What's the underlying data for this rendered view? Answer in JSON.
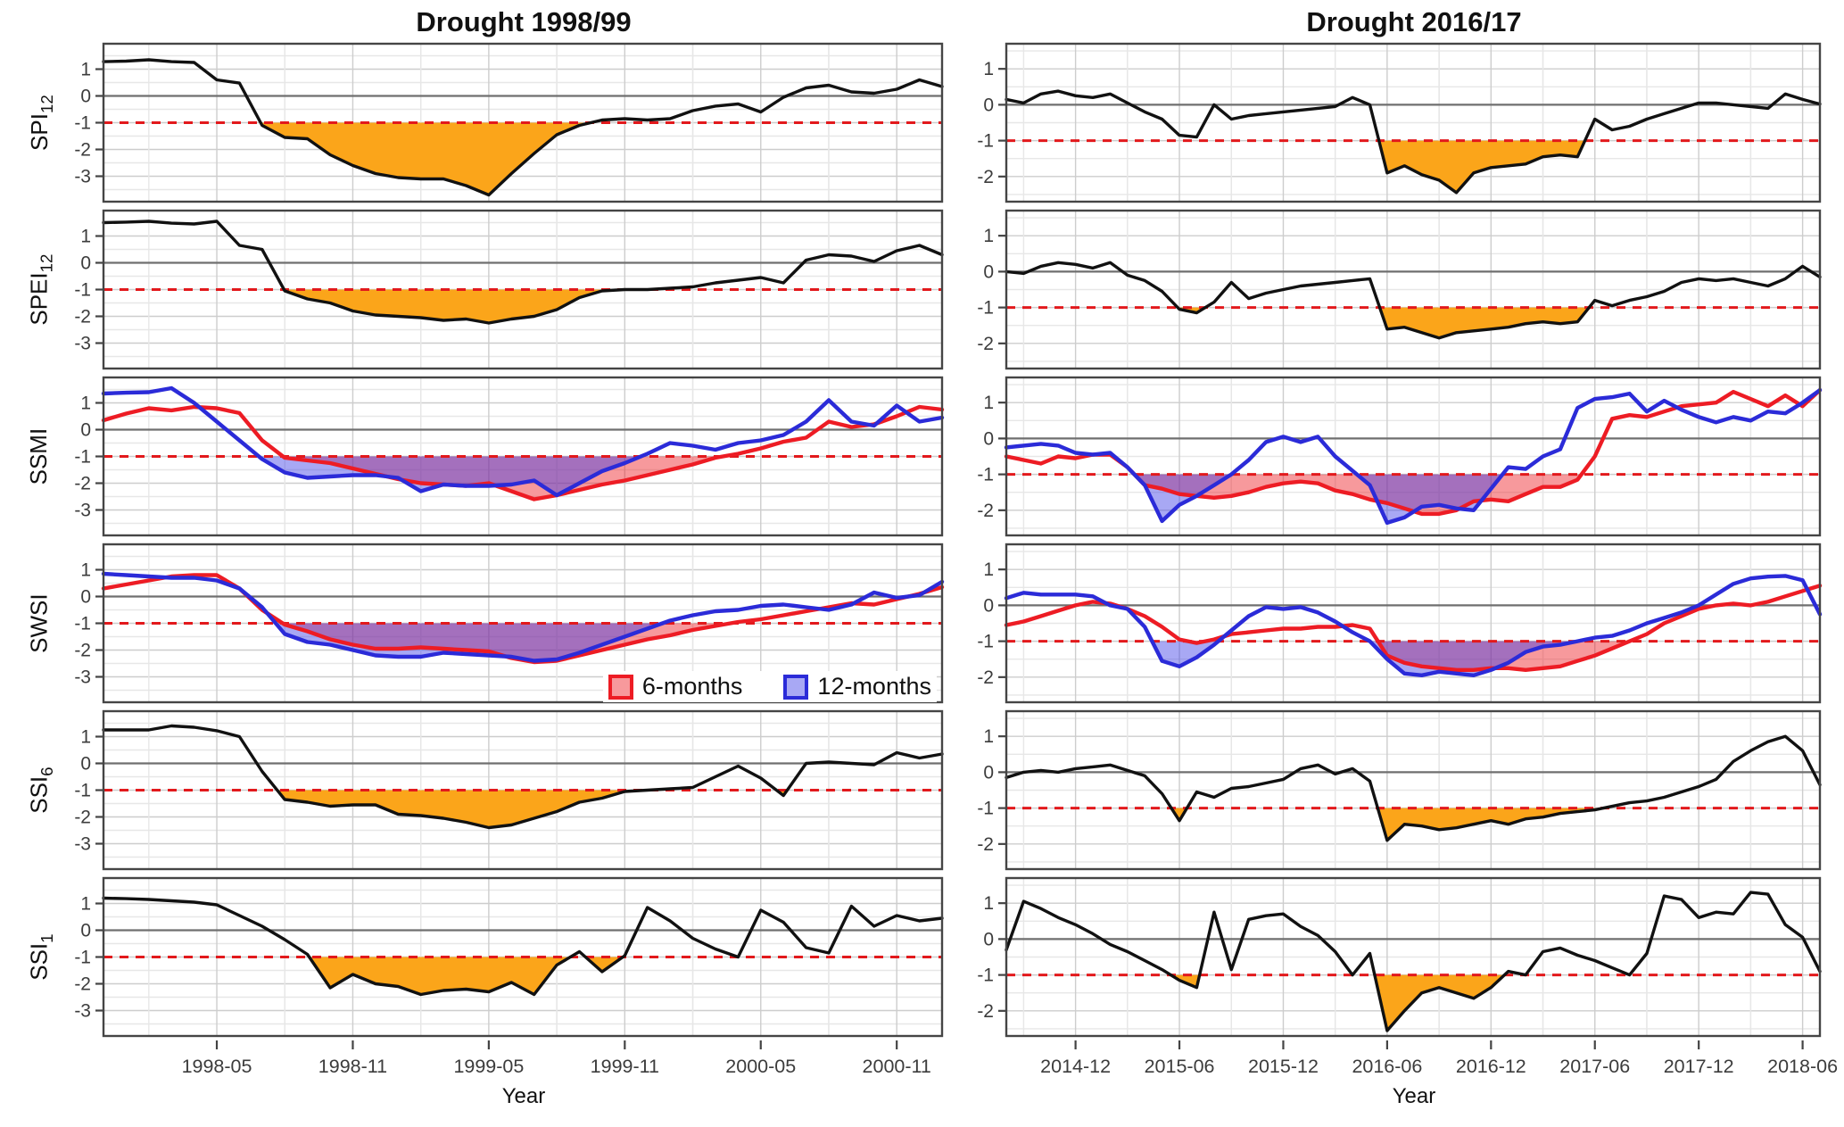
{
  "titles": {
    "left": "Drought 1998/99",
    "right": "Drought 2016/17"
  },
  "rows": [
    {
      "main": "SPI",
      "sub": "12"
    },
    {
      "main": "SPEI",
      "sub": "12"
    },
    {
      "main": "SSMI",
      "sub": ""
    },
    {
      "main": "SWSI",
      "sub": ""
    },
    {
      "main": "SSI",
      "sub": "6"
    },
    {
      "main": "SSI",
      "sub": "1"
    }
  ],
  "axis": {
    "year_label": "Year",
    "left": {
      "n": 38,
      "start_month": "1997-12",
      "ticks": [
        {
          "i": 5,
          "label": "1998-05"
        },
        {
          "i": 11,
          "label": "1998-11"
        },
        {
          "i": 17,
          "label": "1999-05"
        },
        {
          "i": 23,
          "label": "1999-11"
        },
        {
          "i": 29,
          "label": "2000-05"
        },
        {
          "i": 35,
          "label": "2000-11"
        }
      ],
      "yticks": [
        1,
        0,
        -1,
        -2,
        -3
      ],
      "ylim": [
        -3.95,
        1.95
      ]
    },
    "right": {
      "n": 48,
      "start_month": "2014-08",
      "ticks": [
        {
          "i": 4,
          "label": "2014-12"
        },
        {
          "i": 10,
          "label": "2015-06"
        },
        {
          "i": 16,
          "label": "2015-12"
        },
        {
          "i": 22,
          "label": "2016-06"
        },
        {
          "i": 28,
          "label": "2016-12"
        },
        {
          "i": 34,
          "label": "2017-06"
        },
        {
          "i": 40,
          "label": "2017-12"
        },
        {
          "i": 46,
          "label": "2018-06"
        }
      ],
      "yticks": [
        1,
        0,
        -1,
        -2
      ],
      "ylim": [
        -2.7,
        1.7
      ]
    }
  },
  "legend": {
    "items": [
      {
        "label": "6-months",
        "border": "#ED1C24",
        "fill": "rgba(237,28,36,0.45)"
      },
      {
        "label": "12-months",
        "border": "#2B2BD8",
        "fill": "rgba(62,62,230,0.45)"
      }
    ]
  },
  "colors": {
    "black": "#111111",
    "red": "#ED1C24",
    "blue": "#2B2BD8",
    "orange_fill": "#FBA51A",
    "red_fill": "rgba(237,28,36,0.45)",
    "blue_fill": "rgba(62,62,230,0.45)",
    "threshold": "#E2191C",
    "zero_line": "#6F6F6F",
    "grid_minor": "#E7E7E7",
    "grid_major": "#CDCDCD",
    "border": "#454545",
    "tick_label": "#3C3C3C",
    "tick_mark": "#444444"
  },
  "chart_data": [
    {
      "panel": "SPI12 Drought 1998/99",
      "type": "line",
      "side": "left",
      "threshold": -1,
      "series": [
        {
          "name": "SPI12",
          "color": "black",
          "width": 3.4,
          "fill": "orange_fill",
          "values": [
            1.28,
            1.3,
            1.35,
            1.28,
            1.25,
            0.6,
            0.48,
            -1.1,
            -1.55,
            -1.6,
            -2.2,
            -2.6,
            -2.9,
            -3.05,
            -3.1,
            -3.1,
            -3.35,
            -3.7,
            -2.9,
            -2.15,
            -1.45,
            -1.1,
            -0.9,
            -0.85,
            -0.9,
            -0.85,
            -0.55,
            -0.38,
            -0.3,
            -0.6,
            -0.05,
            0.3,
            0.4,
            0.15,
            0.1,
            0.25,
            0.6,
            0.35
          ]
        }
      ]
    },
    {
      "panel": "SPI12 Drought 2016/17",
      "type": "line",
      "side": "right",
      "threshold": -1,
      "series": [
        {
          "name": "SPI12",
          "color": "black",
          "width": 3.4,
          "fill": "orange_fill",
          "values": [
            0.15,
            0.05,
            0.3,
            0.38,
            0.25,
            0.2,
            0.3,
            0.05,
            -0.2,
            -0.4,
            -0.85,
            -0.9,
            0.0,
            -0.4,
            -0.3,
            -0.25,
            -0.2,
            -0.15,
            -0.1,
            -0.05,
            0.2,
            0.0,
            -1.9,
            -1.7,
            -1.95,
            -2.1,
            -2.45,
            -1.9,
            -1.75,
            -1.7,
            -1.65,
            -1.45,
            -1.4,
            -1.45,
            -0.4,
            -0.7,
            -0.6,
            -0.4,
            -0.25,
            -0.1,
            0.05,
            0.05,
            0.0,
            -0.05,
            -0.1,
            0.3,
            0.15,
            0.02
          ]
        }
      ]
    },
    {
      "panel": "SPEI12 Drought 1998/99",
      "type": "line",
      "side": "left",
      "threshold": -1,
      "series": [
        {
          "name": "SPEI12",
          "color": "black",
          "width": 3.4,
          "fill": "orange_fill",
          "values": [
            1.5,
            1.52,
            1.55,
            1.48,
            1.45,
            1.55,
            0.65,
            0.5,
            -1.05,
            -1.35,
            -1.5,
            -1.8,
            -1.95,
            -2.0,
            -2.05,
            -2.15,
            -2.1,
            -2.25,
            -2.1,
            -2.0,
            -1.75,
            -1.3,
            -1.05,
            -1.0,
            -1.0,
            -0.95,
            -0.9,
            -0.75,
            -0.65,
            -0.55,
            -0.75,
            0.1,
            0.3,
            0.25,
            0.05,
            0.45,
            0.65,
            0.3
          ]
        }
      ]
    },
    {
      "panel": "SPEI12 Drought 2016/17",
      "type": "line",
      "side": "right",
      "threshold": -1,
      "series": [
        {
          "name": "SPEI12",
          "color": "black",
          "width": 3.4,
          "fill": "orange_fill",
          "values": [
            0.0,
            -0.05,
            0.15,
            0.25,
            0.2,
            0.1,
            0.25,
            -0.1,
            -0.25,
            -0.55,
            -1.05,
            -1.15,
            -0.85,
            -0.3,
            -0.75,
            -0.6,
            -0.5,
            -0.4,
            -0.35,
            -0.3,
            -0.25,
            -0.2,
            -1.6,
            -1.55,
            -1.7,
            -1.85,
            -1.7,
            -1.65,
            -1.6,
            -1.55,
            -1.45,
            -1.4,
            -1.45,
            -1.4,
            -0.8,
            -0.95,
            -0.8,
            -0.7,
            -0.55,
            -0.3,
            -0.2,
            -0.25,
            -0.2,
            -0.3,
            -0.4,
            -0.2,
            0.15,
            -0.15
          ]
        }
      ]
    },
    {
      "panel": "SSMI Drought 1998/99",
      "type": "line",
      "side": "left",
      "threshold": -1,
      "series": [
        {
          "name": "6-months",
          "color": "red",
          "width": 4.4,
          "fill": "red_fill",
          "values": [
            0.35,
            0.6,
            0.8,
            0.72,
            0.85,
            0.8,
            0.62,
            -0.4,
            -1.05,
            -1.15,
            -1.25,
            -1.45,
            -1.65,
            -1.85,
            -2.0,
            -2.05,
            -2.1,
            -2.0,
            -2.3,
            -2.6,
            -2.45,
            -2.25,
            -2.05,
            -1.9,
            -1.7,
            -1.5,
            -1.3,
            -1.05,
            -0.9,
            -0.7,
            -0.45,
            -0.3,
            0.3,
            0.1,
            0.2,
            0.5,
            0.85,
            0.75
          ]
        },
        {
          "name": "12-months",
          "color": "blue",
          "width": 4.4,
          "fill": "blue_fill",
          "values": [
            1.35,
            1.38,
            1.4,
            1.55,
            1.0,
            0.3,
            -0.4,
            -1.1,
            -1.6,
            -1.8,
            -1.75,
            -1.7,
            -1.7,
            -1.8,
            -2.3,
            -2.05,
            -2.1,
            -2.1,
            -2.05,
            -1.9,
            -2.45,
            -2.0,
            -1.55,
            -1.25,
            -0.9,
            -0.5,
            -0.6,
            -0.75,
            -0.5,
            -0.4,
            -0.2,
            0.3,
            1.1,
            0.3,
            0.15,
            0.9,
            0.3,
            0.45
          ]
        }
      ]
    },
    {
      "panel": "SSMI Drought 2016/17",
      "type": "line",
      "side": "right",
      "threshold": -1,
      "series": [
        {
          "name": "6-months",
          "color": "red",
          "width": 4.4,
          "fill": "red_fill",
          "values": [
            -0.5,
            -0.6,
            -0.7,
            -0.5,
            -0.55,
            -0.45,
            -0.45,
            -0.8,
            -1.3,
            -1.4,
            -1.55,
            -1.6,
            -1.65,
            -1.6,
            -1.5,
            -1.35,
            -1.25,
            -1.2,
            -1.25,
            -1.45,
            -1.55,
            -1.7,
            -1.8,
            -1.95,
            -2.1,
            -2.1,
            -2.0,
            -1.75,
            -1.7,
            -1.75,
            -1.55,
            -1.35,
            -1.35,
            -1.15,
            -0.5,
            0.55,
            0.65,
            0.6,
            0.75,
            0.9,
            0.95,
            1.0,
            1.3,
            1.1,
            0.9,
            1.2,
            0.9,
            1.35
          ]
        },
        {
          "name": "12-months",
          "color": "blue",
          "width": 4.4,
          "fill": "blue_fill",
          "values": [
            -0.25,
            -0.2,
            -0.15,
            -0.2,
            -0.4,
            -0.45,
            -0.4,
            -0.8,
            -1.3,
            -2.3,
            -1.85,
            -1.6,
            -1.3,
            -1.0,
            -0.6,
            -0.1,
            0.05,
            -0.1,
            0.05,
            -0.5,
            -0.9,
            -1.3,
            -2.35,
            -2.2,
            -1.9,
            -1.85,
            -1.95,
            -2.0,
            -1.4,
            -0.8,
            -0.85,
            -0.5,
            -0.3,
            0.85,
            1.1,
            1.15,
            1.25,
            0.75,
            1.05,
            0.8,
            0.6,
            0.45,
            0.6,
            0.5,
            0.75,
            0.7,
            1.0,
            1.35
          ]
        }
      ]
    },
    {
      "panel": "SWSI Drought 1998/99",
      "type": "line",
      "side": "left",
      "threshold": -1,
      "has_legend": true,
      "series": [
        {
          "name": "6-months",
          "color": "red",
          "width": 4.4,
          "fill": "red_fill",
          "values": [
            0.3,
            0.45,
            0.6,
            0.75,
            0.8,
            0.8,
            0.3,
            -0.5,
            -1.05,
            -1.3,
            -1.6,
            -1.8,
            -1.95,
            -1.95,
            -1.9,
            -1.95,
            -2.0,
            -2.05,
            -2.3,
            -2.45,
            -2.4,
            -2.2,
            -2.0,
            -1.8,
            -1.6,
            -1.45,
            -1.25,
            -1.1,
            -0.95,
            -0.85,
            -0.7,
            -0.55,
            -0.4,
            -0.25,
            -0.3,
            -0.1,
            0.1,
            0.35
          ]
        },
        {
          "name": "12-months",
          "color": "blue",
          "width": 4.4,
          "fill": "blue_fill",
          "values": [
            0.85,
            0.8,
            0.75,
            0.7,
            0.7,
            0.6,
            0.3,
            -0.4,
            -1.4,
            -1.7,
            -1.8,
            -2.0,
            -2.2,
            -2.25,
            -2.25,
            -2.1,
            -2.15,
            -2.2,
            -2.25,
            -2.4,
            -2.35,
            -2.1,
            -1.8,
            -1.5,
            -1.2,
            -0.9,
            -0.7,
            -0.55,
            -0.5,
            -0.35,
            -0.3,
            -0.4,
            -0.5,
            -0.3,
            0.15,
            -0.05,
            0.05,
            0.55
          ]
        }
      ]
    },
    {
      "panel": "SWSI Drought 2016/17",
      "type": "line",
      "side": "right",
      "threshold": -1,
      "series": [
        {
          "name": "6-months",
          "color": "red",
          "width": 4.4,
          "fill": "red_fill",
          "values": [
            -0.55,
            -0.45,
            -0.3,
            -0.15,
            0.0,
            0.1,
            0.05,
            -0.1,
            -0.3,
            -0.6,
            -0.95,
            -1.05,
            -0.95,
            -0.8,
            -0.75,
            -0.7,
            -0.65,
            -0.65,
            -0.6,
            -0.6,
            -0.55,
            -0.65,
            -1.4,
            -1.6,
            -1.7,
            -1.75,
            -1.8,
            -1.8,
            -1.75,
            -1.75,
            -1.8,
            -1.75,
            -1.7,
            -1.55,
            -1.4,
            -1.2,
            -1.0,
            -0.8,
            -0.5,
            -0.3,
            -0.1,
            0.0,
            0.05,
            0.0,
            0.1,
            0.25,
            0.4,
            0.55
          ]
        },
        {
          "name": "12-months",
          "color": "blue",
          "width": 4.4,
          "fill": "blue_fill",
          "values": [
            0.2,
            0.35,
            0.3,
            0.3,
            0.3,
            0.25,
            0.0,
            -0.1,
            -0.6,
            -1.55,
            -1.7,
            -1.45,
            -1.1,
            -0.7,
            -0.3,
            -0.05,
            -0.1,
            -0.05,
            -0.2,
            -0.45,
            -0.75,
            -1.0,
            -1.5,
            -1.9,
            -1.95,
            -1.85,
            -1.9,
            -1.95,
            -1.8,
            -1.6,
            -1.3,
            -1.15,
            -1.1,
            -1.0,
            -0.9,
            -0.85,
            -0.7,
            -0.5,
            -0.35,
            -0.2,
            0.0,
            0.3,
            0.6,
            0.75,
            0.8,
            0.82,
            0.7,
            -0.25
          ]
        }
      ]
    },
    {
      "panel": "SSI6 Drought 1998/99",
      "type": "line",
      "side": "left",
      "threshold": -1,
      "series": [
        {
          "name": "SSI6",
          "color": "black",
          "width": 3.4,
          "fill": "orange_fill",
          "values": [
            1.25,
            1.25,
            1.25,
            1.4,
            1.35,
            1.22,
            1.0,
            -0.3,
            -1.35,
            -1.45,
            -1.6,
            -1.55,
            -1.55,
            -1.9,
            -1.95,
            -2.05,
            -2.2,
            -2.4,
            -2.3,
            -2.05,
            -1.8,
            -1.45,
            -1.3,
            -1.05,
            -1.0,
            -0.95,
            -0.9,
            -0.5,
            -0.1,
            -0.55,
            -1.2,
            0.0,
            0.05,
            0.0,
            -0.05,
            0.4,
            0.2,
            0.35
          ]
        }
      ]
    },
    {
      "panel": "SSI6 Drought 2016/17",
      "type": "line",
      "side": "right",
      "threshold": -1,
      "series": [
        {
          "name": "SSI6",
          "color": "black",
          "width": 3.4,
          "fill": "orange_fill",
          "values": [
            -0.15,
            0.0,
            0.05,
            0.0,
            0.1,
            0.15,
            0.2,
            0.05,
            -0.1,
            -0.6,
            -1.35,
            -0.55,
            -0.7,
            -0.45,
            -0.4,
            -0.3,
            -0.2,
            0.1,
            0.2,
            -0.05,
            0.1,
            -0.25,
            -1.9,
            -1.45,
            -1.5,
            -1.6,
            -1.55,
            -1.45,
            -1.35,
            -1.45,
            -1.3,
            -1.25,
            -1.15,
            -1.1,
            -1.05,
            -0.95,
            -0.85,
            -0.8,
            -0.7,
            -0.55,
            -0.4,
            -0.2,
            0.3,
            0.6,
            0.85,
            1.0,
            0.6,
            -0.35
          ]
        }
      ]
    },
    {
      "panel": "SSI1 Drought 1998/99",
      "type": "line",
      "side": "left",
      "threshold": -1,
      "series": [
        {
          "name": "SSI1",
          "color": "black",
          "width": 3.4,
          "fill": "orange_fill",
          "values": [
            1.2,
            1.18,
            1.15,
            1.1,
            1.05,
            0.95,
            0.55,
            0.15,
            -0.35,
            -0.9,
            -2.15,
            -1.65,
            -2.0,
            -2.1,
            -2.4,
            -2.25,
            -2.2,
            -2.3,
            -1.95,
            -2.4,
            -1.3,
            -0.8,
            -1.55,
            -0.95,
            0.85,
            0.35,
            -0.3,
            -0.7,
            -1.0,
            0.75,
            0.3,
            -0.65,
            -0.85,
            0.9,
            0.15,
            0.55,
            0.35,
            0.45
          ]
        }
      ]
    },
    {
      "panel": "SSI1 Drought 2016/17",
      "type": "line",
      "side": "right",
      "threshold": -1,
      "series": [
        {
          "name": "SSI1",
          "color": "black",
          "width": 3.4,
          "fill": "orange_fill",
          "values": [
            -0.3,
            1.05,
            0.85,
            0.6,
            0.4,
            0.15,
            -0.15,
            -0.35,
            -0.6,
            -0.85,
            -1.15,
            -1.35,
            0.75,
            -0.85,
            0.55,
            0.65,
            0.7,
            0.35,
            0.1,
            -0.35,
            -1.0,
            -0.4,
            -2.55,
            -2.0,
            -1.5,
            -1.35,
            -1.5,
            -1.65,
            -1.35,
            -0.9,
            -1.0,
            -0.35,
            -0.25,
            -0.45,
            -0.6,
            -0.8,
            -1.0,
            -0.4,
            1.2,
            1.1,
            0.6,
            0.75,
            0.7,
            1.3,
            1.25,
            0.4,
            0.05,
            -0.9
          ]
        }
      ]
    }
  ]
}
